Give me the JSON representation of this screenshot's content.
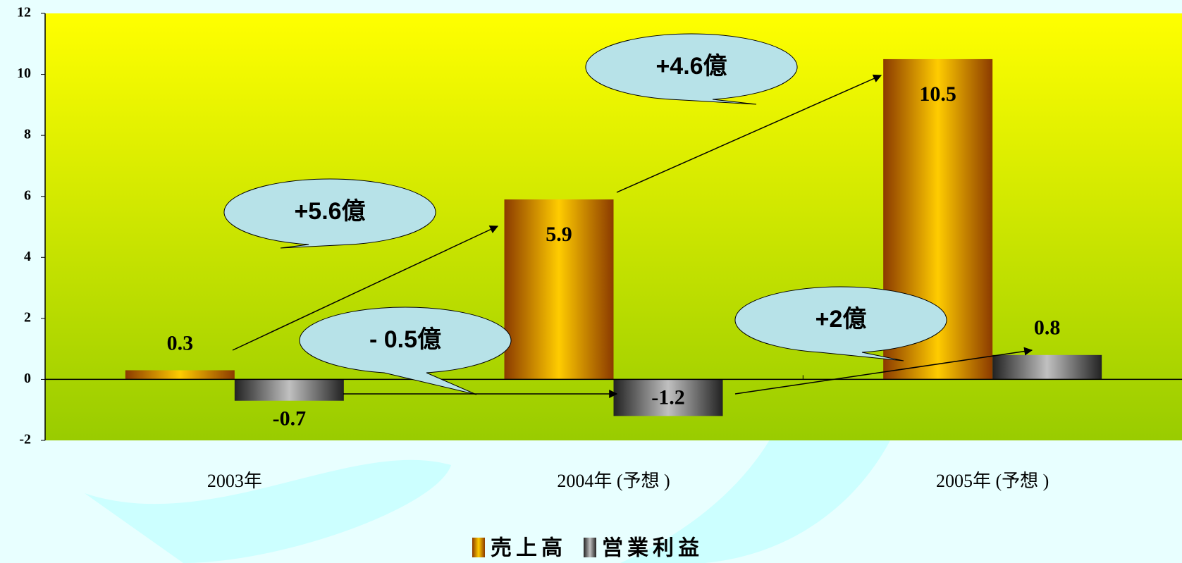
{
  "chart_data": {
    "type": "bar",
    "categories": [
      "2003年",
      "2004年 (予想 )",
      "2005年 (予想 )"
    ],
    "series": [
      {
        "name": "売上高",
        "color": "#ffcc00",
        "values": [
          0.3,
          5.9,
          10.5
        ]
      },
      {
        "name": "営業利益",
        "color": "#c0c0c0",
        "values": [
          -0.7,
          -1.2,
          0.8
        ]
      }
    ],
    "ylim": [
      -2,
      12
    ],
    "yticks": [
      -2,
      0,
      2,
      4,
      6,
      8,
      10,
      12
    ],
    "annotations": [
      "+5.6億",
      "+4.6億",
      "- 0.5億",
      "+2億"
    ],
    "legend": "bottom"
  }
}
